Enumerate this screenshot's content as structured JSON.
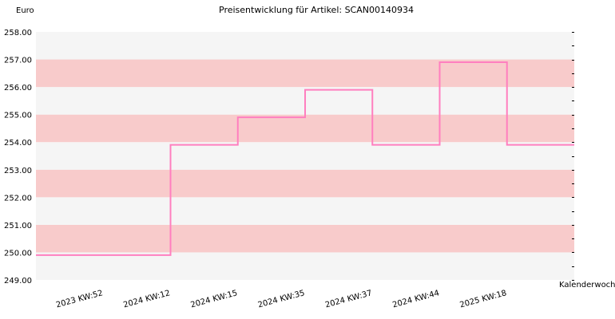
{
  "chart_data": {
    "type": "line",
    "title": "Preisentwicklung für Artikel: SCAN00140934",
    "ylabel": "Euro",
    "xlabel": "Kalenderwoche",
    "ylim": [
      249.0,
      258.0
    ],
    "y_ticks": [
      "249.00",
      "250.00",
      "251.00",
      "252.00",
      "253.00",
      "254.00",
      "255.00",
      "256.00",
      "257.00",
      "258.00"
    ],
    "categories": [
      "2023 KW:52",
      "2024 KW:12",
      "2024 KW:15",
      "2024 KW:35",
      "2024 KW:37",
      "2024 KW:44",
      "2025 KW:18"
    ],
    "series": [
      {
        "values": [
          249.9,
          253.9,
          254.9,
          255.9,
          253.9,
          256.9,
          253.9
        ]
      }
    ],
    "line_style": "step",
    "grid": true,
    "band_colors": [
      "#f5f5f5",
      "#f8cbcb"
    ],
    "line_color": "#ff7fbf"
  }
}
